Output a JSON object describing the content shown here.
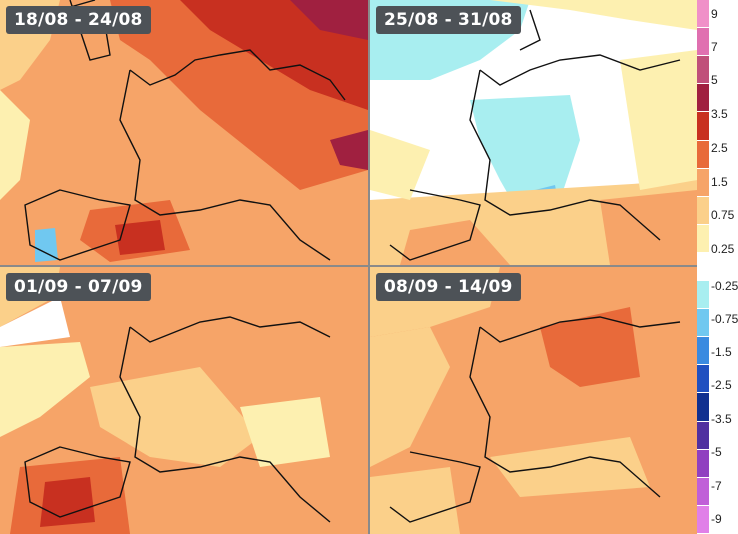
{
  "panels": [
    {
      "label": "18/08 - 24/08"
    },
    {
      "label": "25/08 - 31/08"
    },
    {
      "label": "01/09 - 07/09"
    },
    {
      "label": "08/09 - 14/09"
    }
  ],
  "legend": {
    "ticks": [
      "9",
      "7",
      "5",
      "3.5",
      "2.5",
      "1.5",
      "0.75",
      "0.25",
      "-0.25",
      "-0.75",
      "-1.5",
      "-2.5",
      "-3.5",
      "-5",
      "-7",
      "-9"
    ],
    "colors": [
      "#f090c8",
      "#e070b0",
      "#c0507a",
      "#a02040",
      "#c83020",
      "#e86a3a",
      "#f6a468",
      "#fbd08a",
      "#fdf0b0",
      "#ffffff",
      "#a8eef0",
      "#70c8f0",
      "#3a8ae0",
      "#2050c0",
      "#103090",
      "#5030a0",
      "#9040c0",
      "#c060d8",
      "#e080e8"
    ]
  },
  "colors": {
    "label_bg": "#4d5257",
    "divider": "#8a8a8a"
  }
}
